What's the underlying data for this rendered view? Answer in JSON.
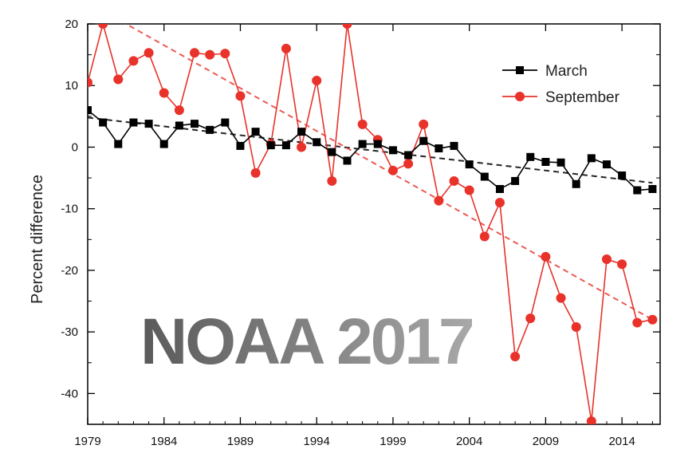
{
  "chart_data": {
    "type": "line",
    "title": "",
    "xlabel": "",
    "ylabel": "Percent difference",
    "xlim": [
      1979,
      2016.5
    ],
    "ylim": [
      -45,
      20
    ],
    "x_ticks": [
      1979,
      1984,
      1989,
      1994,
      1999,
      2004,
      2009,
      2014
    ],
    "y_ticks": [
      20,
      10,
      0,
      -10,
      -20,
      -30,
      -40
    ],
    "legend_position": "top-right",
    "watermark": "NOAA 2017",
    "x": [
      1979,
      1980,
      1981,
      1982,
      1983,
      1984,
      1985,
      1986,
      1987,
      1988,
      1989,
      1990,
      1991,
      1992,
      1993,
      1994,
      1995,
      1996,
      1997,
      1998,
      1999,
      2000,
      2001,
      2002,
      2003,
      2004,
      2005,
      2006,
      2007,
      2008,
      2009,
      2010,
      2011,
      2012,
      2013,
      2014,
      2015,
      2016
    ],
    "series": [
      {
        "name": "March",
        "color": "#000000",
        "marker": "square",
        "values": [
          6.0,
          4.0,
          0.5,
          4.0,
          3.8,
          0.5,
          3.5,
          3.8,
          2.8,
          4.0,
          0.2,
          2.5,
          0.3,
          0.3,
          2.5,
          0.8,
          -0.8,
          -2.2,
          0.5,
          0.5,
          -0.5,
          -1.3,
          1.0,
          -0.2,
          0.2,
          -2.8,
          -4.8,
          -6.8,
          -5.5,
          -1.6,
          -2.4,
          -2.5,
          -6.0,
          -1.8,
          -2.8,
          -4.6,
          -7.0,
          -6.8
        ],
        "trend": [
          4.8,
          -5.8
        ]
      },
      {
        "name": "September",
        "color": "#e8322a",
        "marker": "circle",
        "values": [
          10.5,
          20.0,
          11.0,
          14.0,
          15.3,
          8.8,
          6.0,
          15.3,
          15.0,
          15.2,
          8.3,
          -4.2,
          0.5,
          16.0,
          0.0,
          10.8,
          -5.5,
          20.0,
          3.7,
          1.2,
          -3.8,
          -2.7,
          3.7,
          -8.7,
          -5.5,
          -7.0,
          -14.5,
          -9.0,
          -34.0,
          -27.8,
          -17.8,
          -24.5,
          -29.2,
          -44.5,
          -18.2,
          -19.0,
          -28.5,
          -28.0
        ],
        "trend": [
          23.5,
          -28.0
        ]
      }
    ]
  }
}
